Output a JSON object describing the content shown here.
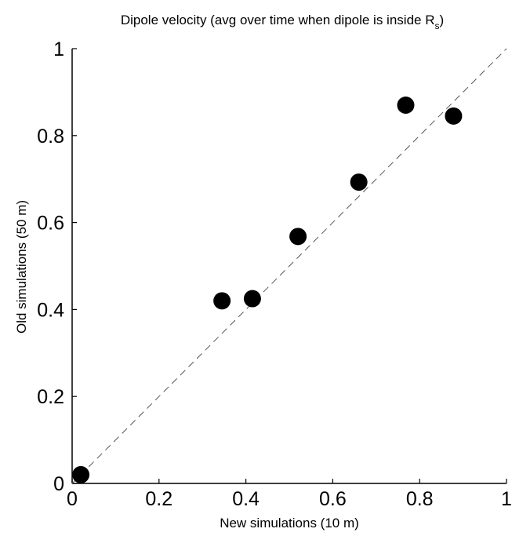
{
  "chart_data": {
    "type": "scatter",
    "title": {
      "main": "Dipole velocity (avg over time when dipole is inside R",
      "subscript": "s",
      "close": ")"
    },
    "xlabel": "New simulations (10 m)",
    "ylabel": "Old simulations (50 m)",
    "xlim": [
      0,
      1
    ],
    "ylim": [
      0,
      1
    ],
    "x_ticks": [
      "0",
      "0.2",
      "0.4",
      "0.6",
      "0.8",
      "1"
    ],
    "y_ticks": [
      "0",
      "0.2",
      "0.4",
      "0.6",
      "0.8",
      "1"
    ],
    "grid": false,
    "reference_line": {
      "style": "dashed",
      "from": [
        0,
        0
      ],
      "to": [
        1,
        1
      ]
    },
    "marker_color": "#000000",
    "points": [
      {
        "x": 0.02,
        "y": 0.02
      },
      {
        "x": 0.345,
        "y": 0.42
      },
      {
        "x": 0.415,
        "y": 0.425
      },
      {
        "x": 0.52,
        "y": 0.568
      },
      {
        "x": 0.66,
        "y": 0.693
      },
      {
        "x": 0.768,
        "y": 0.87
      },
      {
        "x": 0.878,
        "y": 0.845
      }
    ]
  }
}
